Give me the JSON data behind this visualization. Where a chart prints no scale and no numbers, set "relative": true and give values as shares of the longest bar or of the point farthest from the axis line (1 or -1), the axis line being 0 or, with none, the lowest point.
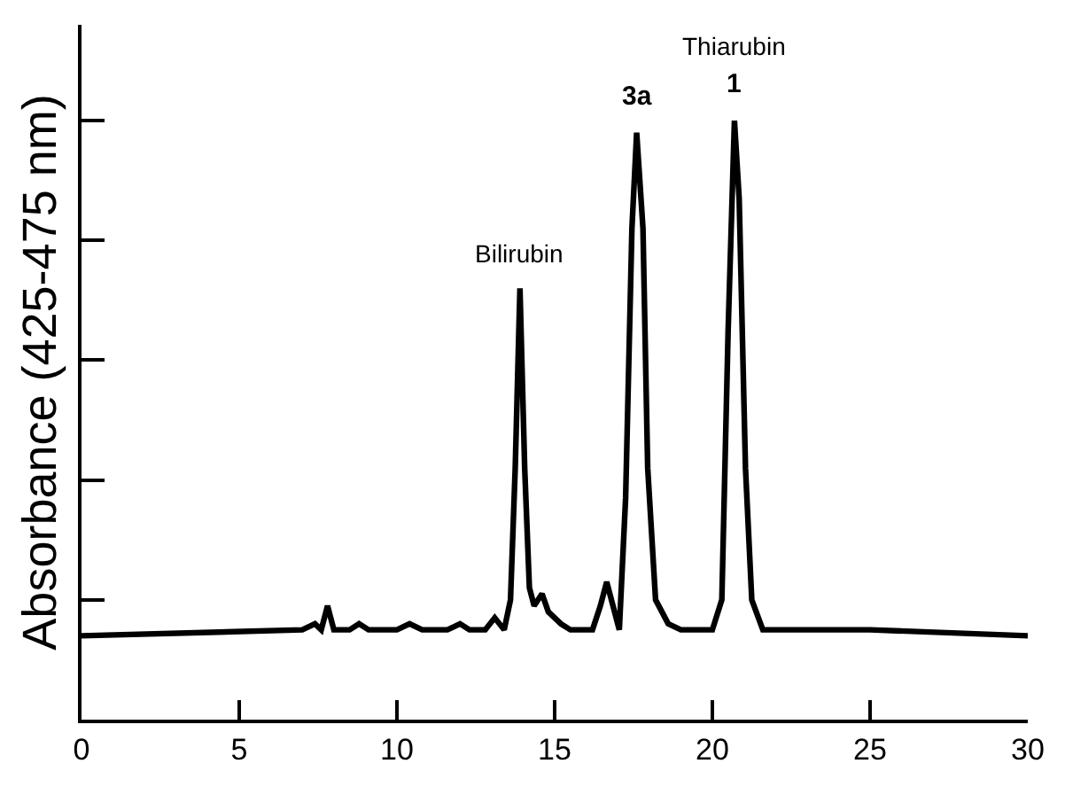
{
  "chart_data": {
    "type": "line",
    "relative": true,
    "ylabel": "Absorbance (425-475 nm)",
    "xlim": [
      0,
      30
    ],
    "xticks": [
      0,
      5,
      10,
      15,
      20,
      25,
      30
    ],
    "tick_labels": "x",
    "marker": "none",
    "line_style": "solid",
    "series": [
      {
        "color": "#000000",
        "x": [
          0,
          7.0,
          7.4,
          7.6,
          7.8,
          8.0,
          8.5,
          8.8,
          9.1,
          10.0,
          10.4,
          10.8,
          11.6,
          12.0,
          12.3,
          12.8,
          13.1,
          13.4,
          13.6,
          13.75,
          13.9,
          14.05,
          14.2,
          14.35,
          14.6,
          14.8,
          15.2,
          15.5,
          16.2,
          16.45,
          16.65,
          16.85,
          17.05,
          17.25,
          17.45,
          17.6,
          17.8,
          17.95,
          18.2,
          18.6,
          19.0,
          19.5,
          20.0,
          20.3,
          20.5,
          20.7,
          20.85,
          21.05,
          21.25,
          21.6,
          22.5,
          25,
          30
        ],
        "values": [
          0.14,
          0.15,
          0.16,
          0.15,
          0.19,
          0.15,
          0.15,
          0.16,
          0.15,
          0.15,
          0.16,
          0.15,
          0.15,
          0.16,
          0.15,
          0.15,
          0.17,
          0.15,
          0.2,
          0.42,
          0.72,
          0.42,
          0.22,
          0.19,
          0.21,
          0.18,
          0.16,
          0.15,
          0.15,
          0.19,
          0.23,
          0.19,
          0.15,
          0.37,
          0.82,
          0.98,
          0.82,
          0.42,
          0.2,
          0.16,
          0.15,
          0.15,
          0.15,
          0.2,
          0.65,
          1.0,
          0.87,
          0.42,
          0.2,
          0.15,
          0.15,
          0.15,
          0.14
        ]
      }
    ],
    "annotations": [
      {
        "text": "Bilirubin",
        "x": 13.9,
        "y": 0.72
      },
      {
        "text": "3a",
        "x": 17.6,
        "y": 0.98
      },
      {
        "text": "1",
        "x": 20.7,
        "y": 1.0
      },
      {
        "text": "Thiarubin",
        "x": 20.7,
        "y": 1.0
      }
    ]
  }
}
